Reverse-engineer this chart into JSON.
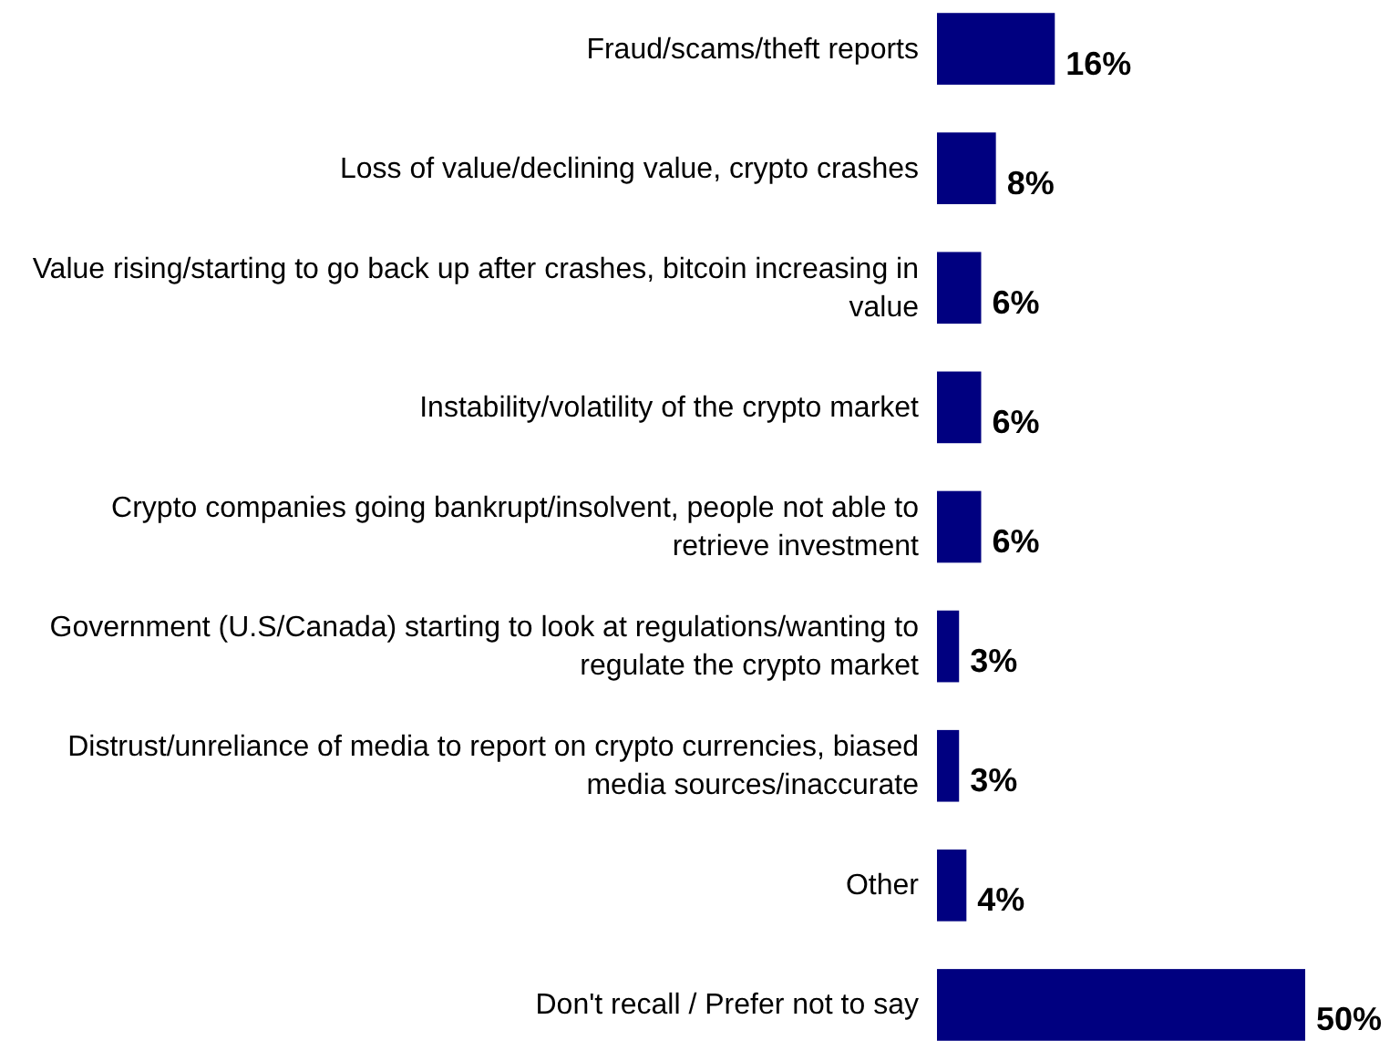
{
  "chart_data": {
    "type": "bar",
    "orientation": "horizontal",
    "categories": [
      "Fraud/scams/theft reports",
      "Loss of value/declining value, crypto crashes",
      "Value rising/starting to go back up after crashes, bitcoin increasing in value",
      "Instability/volatility of the crypto market",
      "Crypto companies going bankrupt/insolvent, people not able to retrieve investment",
      "Government (U.S/Canada) starting to look at regulations/wanting to regulate the crypto market",
      "Distrust/unreliance of media to report on crypto currencies, biased media sources/inaccurate",
      "Other",
      "Don't recall / Prefer not to say"
    ],
    "values": [
      16,
      8,
      6,
      6,
      6,
      3,
      3,
      4,
      50
    ],
    "value_labels": [
      "16%",
      "8%",
      "6%",
      "6%",
      "6%",
      "3%",
      "3%",
      "4%",
      "50%"
    ],
    "color": "#000080",
    "xlim": [
      0,
      50
    ]
  }
}
